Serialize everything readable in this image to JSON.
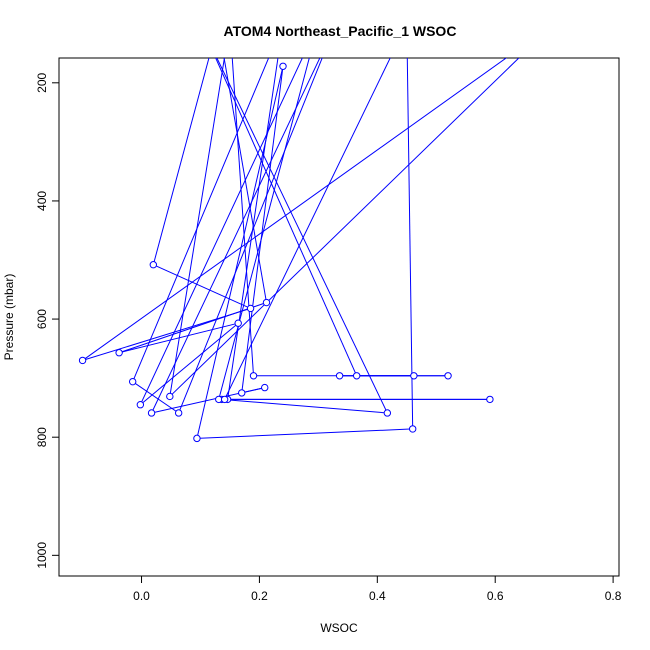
{
  "chart_data": {
    "type": "line",
    "title": "ATOM4 Northeast_Pacific_1 WSOC",
    "xlabel": "WSOC",
    "ylabel": "Pressure (mbar)",
    "xlim": [
      -0.14,
      0.81
    ],
    "ylim": [
      1035,
      158
    ],
    "y_reversed": true,
    "x_ticks": [
      0.0,
      0.2,
      0.4,
      0.6,
      0.8
    ],
    "x_tick_labels": [
      "0.0",
      "0.2",
      "0.4",
      "0.6",
      "0.8"
    ],
    "y_ticks": [
      200,
      400,
      600,
      800,
      1000
    ],
    "y_tick_labels": [
      "200",
      "400",
      "600",
      "800",
      "1000"
    ],
    "grid": false,
    "legend": "none",
    "series_color": "#0000ff",
    "points": [
      {
        "x": 0.46,
        "y": 786
      },
      {
        "x": 0.094,
        "y": 802
      },
      {
        "x": 0.24,
        "y": 172
      },
      {
        "x": 0.17,
        "y": 725
      },
      {
        "x": 0.209,
        "y": 716
      },
      {
        "x": 0.017,
        "y": 759
      },
      {
        "x": 0.33,
        "y": 100
      },
      {
        "x": 0.063,
        "y": 759
      },
      {
        "x": -0.015,
        "y": 706
      },
      {
        "x": 0.24,
        "y": 100
      },
      {
        "x": 0.146,
        "y": 736
      },
      {
        "x": 0.591,
        "y": 736
      },
      {
        "x": 0.136,
        "y": 736
      },
      {
        "x": 0.417,
        "y": 759
      },
      {
        "x": 0.1,
        "y": 100
      },
      {
        "x": 0.365,
        "y": 696
      },
      {
        "x": 0.52,
        "y": 696
      },
      {
        "x": 0.336,
        "y": 696
      },
      {
        "x": 0.462,
        "y": 696
      },
      {
        "x": 0.19,
        "y": 696
      },
      {
        "x": 0.15,
        "y": 100
      },
      {
        "x": 0.048,
        "y": 731
      },
      {
        "x": 0.7,
        "y": 100
      },
      {
        "x": -0.1,
        "y": 670
      },
      {
        "x": 0.185,
        "y": 582
      },
      {
        "x": 0.02,
        "y": 508
      },
      {
        "x": 0.13,
        "y": 100
      },
      {
        "x": 0.212,
        "y": 572
      },
      {
        "x": -0.038,
        "y": 657
      },
      {
        "x": 0.164,
        "y": 607
      },
      {
        "x": -0.002,
        "y": 745
      },
      {
        "x": 0.3,
        "y": 100
      },
      {
        "x": 0.131,
        "y": 736
      },
      {
        "x": 0.141,
        "y": 736
      },
      {
        "x": 0.45,
        "y": 100
      },
      {
        "x": 0.46,
        "y": 786
      }
    ],
    "marker_x": [
      0.46,
      0.094,
      0.24,
      0.17,
      0.209,
      0.017,
      0.063,
      -0.015,
      0.146,
      0.591,
      0.136,
      0.417,
      0.365,
      0.52,
      0.336,
      0.462,
      0.19,
      0.048,
      -0.1,
      0.185,
      0.02,
      0.212,
      -0.038,
      0.164,
      -0.002,
      0.131,
      0.141
    ],
    "marker_y": [
      786,
      802,
      172,
      725,
      716,
      759,
      759,
      706,
      736,
      736,
      736,
      759,
      696,
      696,
      696,
      696,
      696,
      731,
      670,
      582,
      508,
      572,
      657,
      607,
      745,
      736,
      736
    ]
  }
}
